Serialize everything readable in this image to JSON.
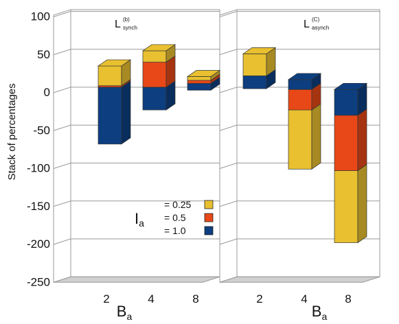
{
  "chart_data": {
    "type": "bar",
    "stacked": true,
    "ylabel": "Stack of percentages",
    "ylim": [
      -250,
      100
    ],
    "yticks": [
      100,
      50,
      0,
      -50,
      -100,
      -150,
      -200,
      -250
    ],
    "xlabel_main": "B",
    "xlabel_sub": "a",
    "categories": [
      "2",
      "4",
      "8"
    ],
    "legend": {
      "symbol_main": "I",
      "symbol_sub": "a",
      "entries": [
        "= 0.25",
        "= 0.5",
        "= 1.0"
      ]
    },
    "colors": {
      "0.25": "#E8C030",
      "0.5": "#E84818",
      "1.0": "#0C3E80"
    },
    "panels": [
      {
        "title_main": "L",
        "title_sup": "(b)",
        "title_sub": "synch",
        "stacks": [
          {
            "category": "2",
            "segments": [
              {
                "series": "1.0",
                "from": -75,
                "to": 0
              },
              {
                "series": "0.5",
                "from": 0,
                "to": 2
              },
              {
                "series": "0.25",
                "from": 2,
                "to": 28
              }
            ]
          },
          {
            "category": "4",
            "segments": [
              {
                "series": "1.0",
                "from": -30,
                "to": 0
              },
              {
                "series": "0.5",
                "from": 0,
                "to": 33
              },
              {
                "series": "0.25",
                "from": 33,
                "to": 48
              }
            ]
          },
          {
            "category": "8",
            "segments": [
              {
                "series": "1.0",
                "from": -4,
                "to": 5
              },
              {
                "series": "0.5",
                "from": 5,
                "to": 9
              },
              {
                "series": "0.25",
                "from": 9,
                "to": 14
              }
            ]
          }
        ]
      },
      {
        "title_main": "L",
        "title_sup": "(C)",
        "title_sub": "asynch",
        "stacks": [
          {
            "category": "2",
            "segments": [
              {
                "series": "1.0",
                "from": -2,
                "to": 15
              },
              {
                "series": "0.25",
                "from": 15,
                "to": 44
              }
            ]
          },
          {
            "category": "4",
            "segments": [
              {
                "series": "0.25",
                "from": -108,
                "to": -30
              },
              {
                "series": "0.5",
                "from": -30,
                "to": -3
              },
              {
                "series": "1.0",
                "from": -3,
                "to": 10
              }
            ]
          },
          {
            "category": "8",
            "segments": [
              {
                "series": "0.25",
                "from": -205,
                "to": -110
              },
              {
                "series": "0.5",
                "from": -110,
                "to": -37
              },
              {
                "series": "1.0",
                "from": -37,
                "to": -3
              }
            ]
          }
        ]
      }
    ]
  }
}
